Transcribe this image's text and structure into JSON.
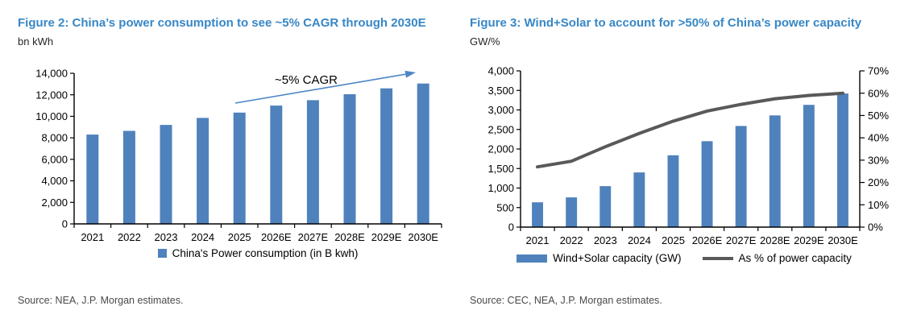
{
  "colors": {
    "title_blue": "#3787C6",
    "bar_blue": "#4F82BC",
    "line_gray": "#595959",
    "arrow_blue": "#4E86C6",
    "source_gray": "#4A4A4A"
  },
  "chart_data": [
    {
      "id": "fig2",
      "type": "bar",
      "title": "Figure 2: China’s power consumption to see ~5% CAGR through 2030E",
      "unit_label": "bn kWh",
      "categories": [
        "2021",
        "2022",
        "2023",
        "2024",
        "2025",
        "2026E",
        "2027E",
        "2028E",
        "2029E",
        "2030E"
      ],
      "series": [
        {
          "name": "China's Power consumption (in B kwh)",
          "type": "bar",
          "axis": "left",
          "color": "#4F82BC",
          "values": [
            8300,
            8650,
            9200,
            9850,
            10350,
            11000,
            11500,
            12050,
            12600,
            13050
          ]
        }
      ],
      "axes": {
        "left": {
          "min": 0,
          "max": 14000,
          "step": 2000,
          "format": "comma"
        }
      },
      "grid": false,
      "legend_position": "bottom",
      "annotation": {
        "text": "~5% CAGR"
      },
      "source": "Source: NEA, J.P. Morgan estimates."
    },
    {
      "id": "fig3",
      "type": "bar+line",
      "title": "Figure 3: Wind+Solar to account for >50% of China’s power capacity",
      "unit_label": "GW/%",
      "categories": [
        "2021",
        "2022",
        "2023",
        "2024",
        "2025",
        "2026E",
        "2027E",
        "2028E",
        "2029E",
        "2030E"
      ],
      "series": [
        {
          "name": "Wind+Solar capacity (GW)",
          "type": "bar",
          "axis": "left",
          "color": "#4F82BC",
          "values": [
            635,
            760,
            1050,
            1400,
            1840,
            2200,
            2590,
            2860,
            3130,
            3420
          ]
        },
        {
          "name": "As % of power capacity",
          "type": "line",
          "axis": "right",
          "color": "#595959",
          "values": [
            27,
            29.5,
            36,
            42,
            47.5,
            52,
            55,
            57.5,
            59,
            60
          ]
        }
      ],
      "axes": {
        "left": {
          "min": 0,
          "max": 4000,
          "step": 500,
          "format": "comma"
        },
        "right": {
          "min": 0,
          "max": 70,
          "step": 10,
          "format": "percent"
        }
      },
      "grid": false,
      "legend_position": "bottom",
      "source": "Source: CEC, NEA, J.P. Morgan estimates."
    }
  ]
}
